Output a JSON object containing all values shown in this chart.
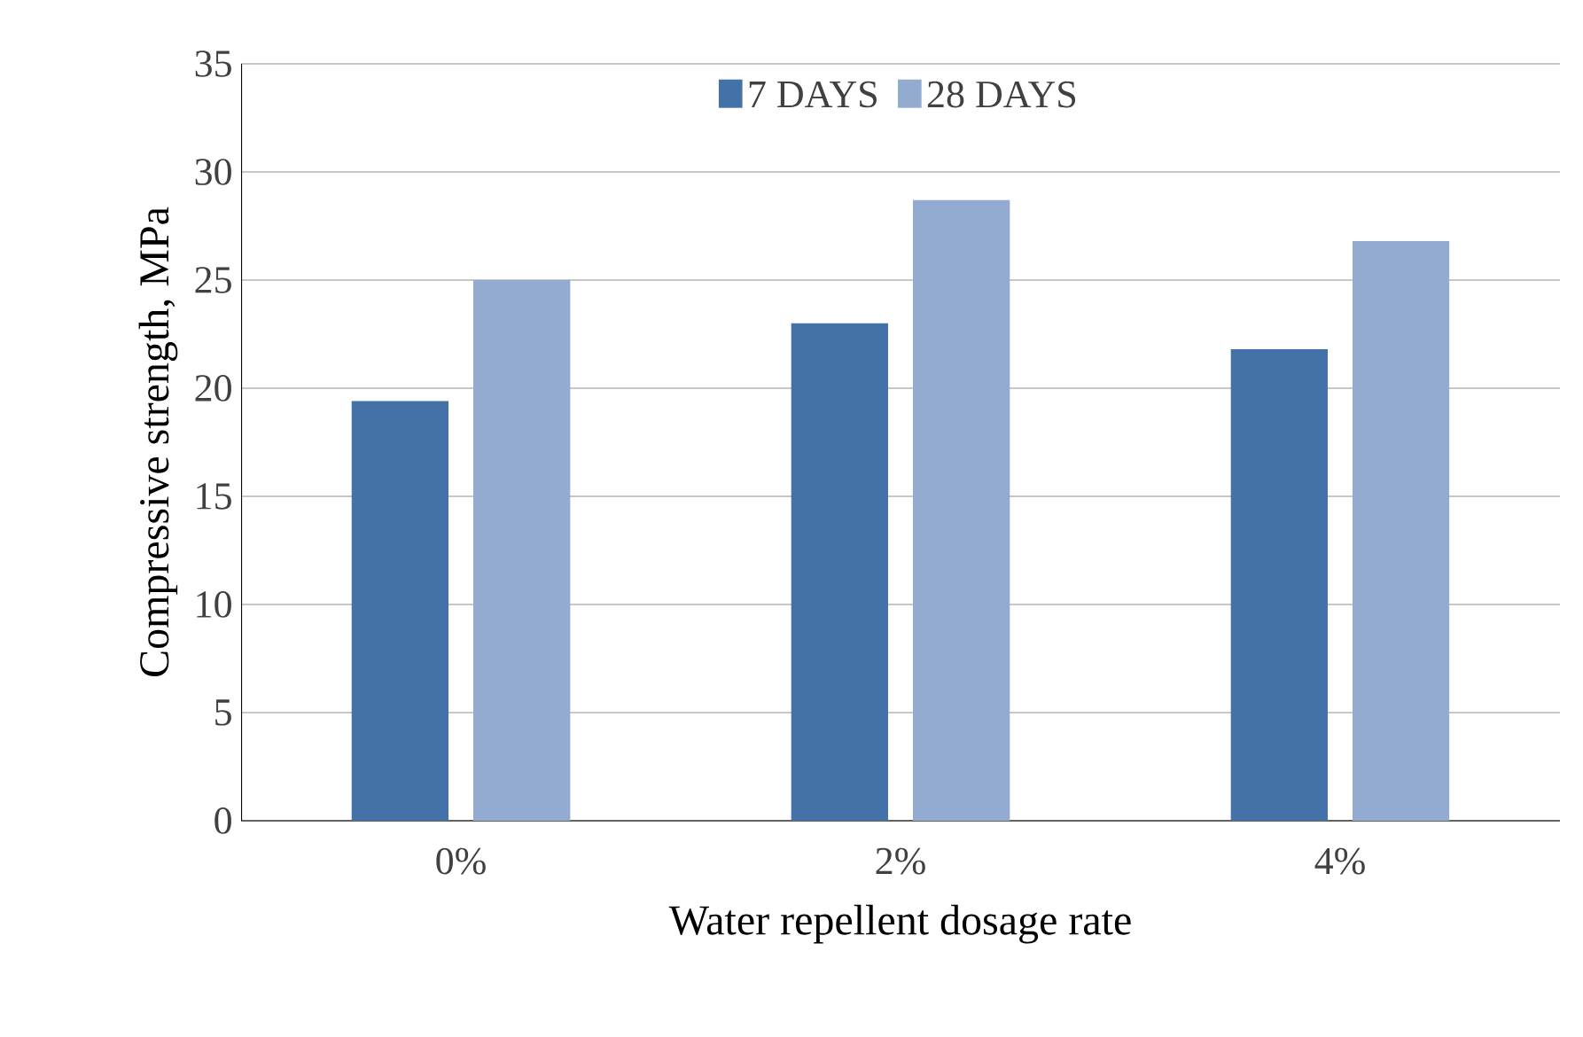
{
  "chart_data": {
    "type": "bar",
    "xlabel": "Water repellent dosage rate",
    "ylabel": "Compressive strength, MPa",
    "categories": [
      "0%",
      "2%",
      "4%"
    ],
    "series": [
      {
        "name": "7 DAYS",
        "color": "#4472a8",
        "values": [
          19.4,
          23.0,
          21.8
        ]
      },
      {
        "name": "28 DAYS",
        "color": "#94abd1",
        "values": [
          25.0,
          28.7,
          26.8
        ]
      }
    ],
    "ylim": [
      0,
      35
    ],
    "yticks": [
      0,
      5,
      10,
      15,
      20,
      25,
      30,
      35
    ],
    "grid": "y",
    "legend": "top"
  }
}
